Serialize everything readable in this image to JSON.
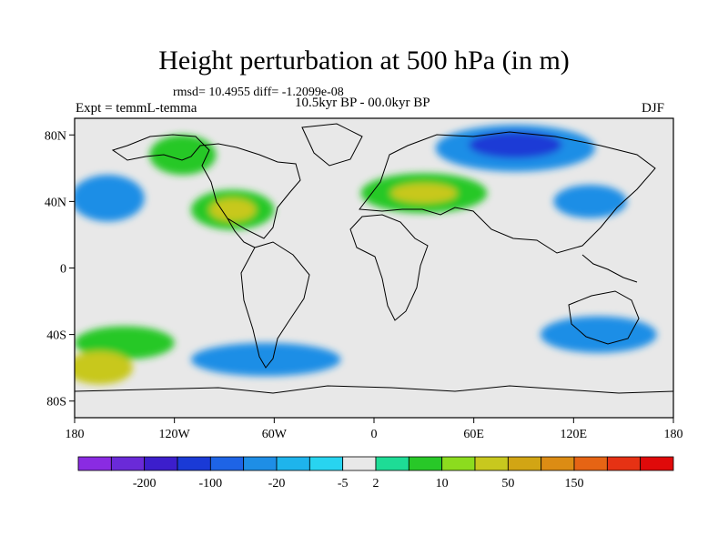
{
  "title": "Height perturbation at 500 hPa (in m)",
  "stats_line": "rmsd= 10.4955 diff= -1.2099e-08",
  "experiment": "Expt = temmL-temma",
  "period": "10.5kyr BP - 00.0kyr BP",
  "season": "DJF",
  "lon_ticks": [
    {
      "value": -180,
      "label": "180"
    },
    {
      "value": -120,
      "label": "120W"
    },
    {
      "value": -60,
      "label": "60W"
    },
    {
      "value": 0,
      "label": "0"
    },
    {
      "value": 60,
      "label": "60E"
    },
    {
      "value": 120,
      "label": "120E"
    },
    {
      "value": 180,
      "label": "180"
    }
  ],
  "lat_ticks": [
    {
      "value": 80,
      "label": "80N"
    },
    {
      "value": 40,
      "label": "40N"
    },
    {
      "value": 0,
      "label": "0"
    },
    {
      "value": -40,
      "label": "40S"
    },
    {
      "value": -80,
      "label": "80S"
    }
  ],
  "colorbar": {
    "colors": [
      "#8a2be2",
      "#6a2ad8",
      "#3c1ecc",
      "#1a3ad6",
      "#1e64e6",
      "#1e8ee6",
      "#1eb4ec",
      "#28d4f0",
      "#e8e8e8",
      "#1edc96",
      "#28c828",
      "#8cdc1e",
      "#c8c81e",
      "#d2a514",
      "#dc8c14",
      "#e66414",
      "#e63214",
      "#e00a0a"
    ],
    "labels": [
      "-200",
      "-100",
      "-20",
      "-5",
      "2",
      "10",
      "50",
      "150"
    ],
    "label_after_index": [
      1,
      3,
      5,
      7,
      8,
      10,
      12,
      14
    ]
  },
  "anomalies": [
    {
      "lon": 85,
      "lat": 72,
      "rx": 48,
      "ry": 14,
      "level": -20
    },
    {
      "lon": 85,
      "lat": 74,
      "rx": 28,
      "ry": 8,
      "level": -100
    },
    {
      "lon": -160,
      "lat": 42,
      "rx": 22,
      "ry": 14,
      "level": -20
    },
    {
      "lon": 130,
      "lat": 40,
      "rx": 22,
      "ry": 10,
      "level": -20
    },
    {
      "lon": -115,
      "lat": 68,
      "rx": 20,
      "ry": 12,
      "level": 10
    },
    {
      "lon": -85,
      "lat": 35,
      "rx": 25,
      "ry": 12,
      "level": 10
    },
    {
      "lon": -85,
      "lat": 35,
      "rx": 14,
      "ry": 7,
      "level": 50
    },
    {
      "lon": 30,
      "lat": 45,
      "rx": 38,
      "ry": 12,
      "level": 10
    },
    {
      "lon": 30,
      "lat": 45,
      "rx": 20,
      "ry": 6,
      "level": 50
    },
    {
      "lon": -150,
      "lat": -45,
      "rx": 30,
      "ry": 10,
      "level": 10
    },
    {
      "lon": -65,
      "lat": -55,
      "rx": 45,
      "ry": 10,
      "level": -20
    },
    {
      "lon": 135,
      "lat": -40,
      "rx": 35,
      "ry": 11,
      "level": -20
    },
    {
      "lon": -165,
      "lat": -60,
      "rx": 20,
      "ry": 10,
      "level": 50
    }
  ]
}
